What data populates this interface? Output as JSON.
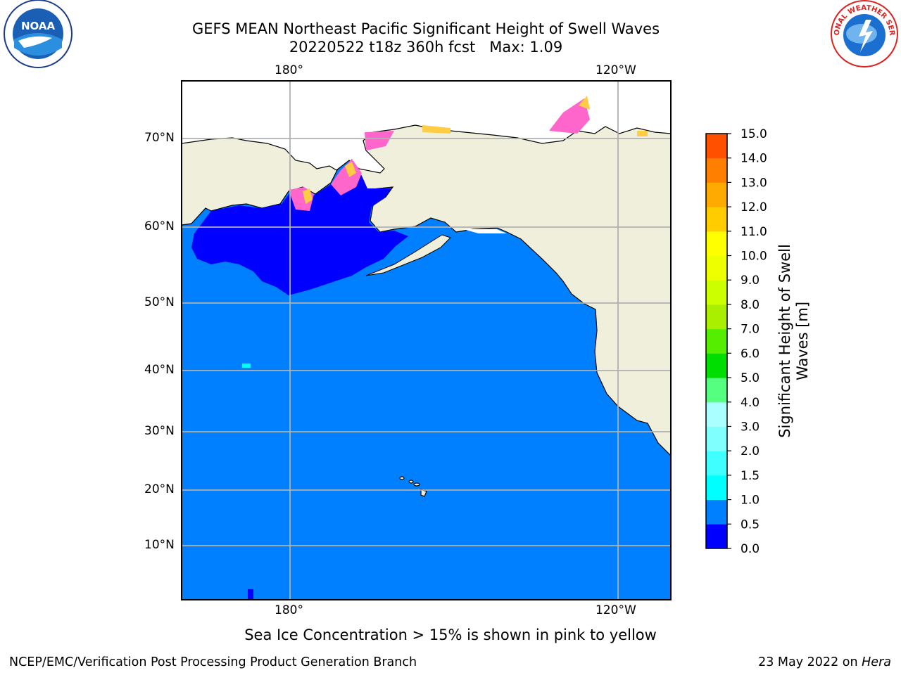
{
  "title": {
    "line1": "GEFS MEAN Northeast Pacific Significant Height of Swell Waves",
    "line2_run": "20220522 t18z 360h fcst",
    "line2_max": "Max: 1.09"
  },
  "chart_data": {
    "type": "heatmap",
    "title": "GEFS MEAN Northeast Pacific Significant Height of Swell Waves",
    "subtitle": "20220522 t18z 360h fcst   Max: 1.09",
    "x_ticks": [
      "180°",
      "120°W"
    ],
    "y_ticks": [
      "70°N",
      "60°N",
      "50°N",
      "40°N",
      "30°N",
      "20°N",
      "10°N"
    ],
    "field_max": 1.09,
    "dominant_value_range": [
      0.5,
      1.0
    ],
    "grid": true,
    "colorbar": {
      "label": "Significant Height of Swell Waves [m]",
      "levels": [
        "0.0",
        "0.5",
        "1.0",
        "1.5",
        "2.0",
        "3.0",
        "4.0",
        "5.0",
        "6.0",
        "7.0",
        "8.0",
        "9.0",
        "10.0",
        "11.0",
        "12.0",
        "13.0",
        "14.0",
        "15.0"
      ],
      "colors": [
        "#0000ff",
        "#0080ff",
        "#00ffff",
        "#40ffff",
        "#80ffff",
        "#aaffff",
        "#55ff80",
        "#00dd00",
        "#55ee00",
        "#aaee00",
        "#ccff00",
        "#eeff00",
        "#ffff00",
        "#ffcc00",
        "#ffaa00",
        "#ff8000",
        "#ff5000",
        "#ff2000",
        "#ff0000"
      ]
    },
    "note": "Sea Ice Concentration > 15% is shown in pink to yellow"
  },
  "colors": {
    "ocean_main": "#0080ff",
    "ocean_low": "#0000ff",
    "land": "#efefdb",
    "ice_pink": "#ff66cc",
    "ice_yellow": "#ffcc44",
    "gridline": "#b0b0b0"
  },
  "colorbar_label_line1": "Significant Height of Swell",
  "colorbar_label_line2": "Waves [m]",
  "footer": {
    "left": "NCEP/EMC/Verification Post Processing Product Generation Branch",
    "right_prefix": "23 May 2022 on ",
    "right_host": "Hera"
  },
  "logos": {
    "left": "NOAA",
    "right": "NATIONAL WEATHER SERVICE"
  }
}
